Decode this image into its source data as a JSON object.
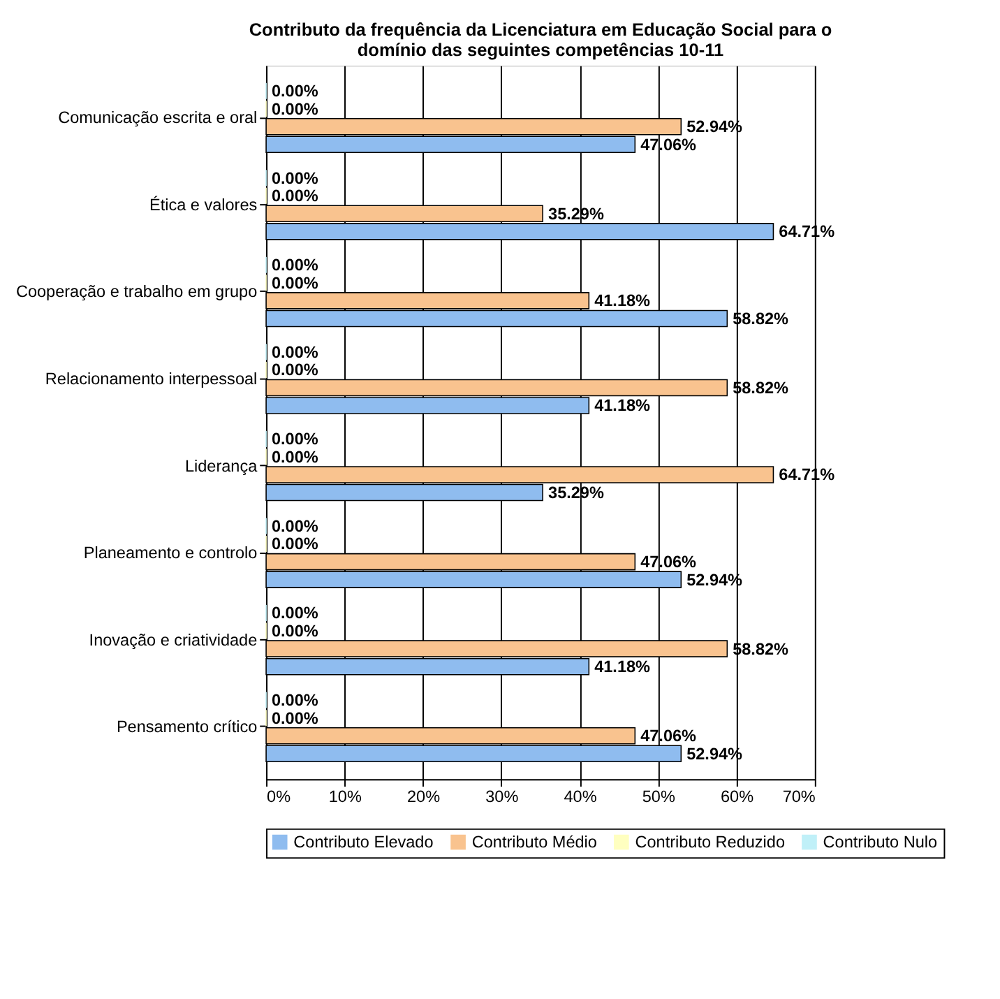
{
  "chart_data": {
    "type": "bar",
    "orientation": "horizontal",
    "title": "Contributo da frequência da Licenciatura em Educação Social para o domínio das seguintes competências 10-11",
    "categories": [
      "Comunicação escrita e oral",
      "Ética e valores",
      "Cooperação e trabalho em grupo",
      "Relacionamento interpessoal",
      "Liderança",
      "Planeamento e controlo",
      "Inovação e criatividade",
      "Pensamento crítico"
    ],
    "series": [
      {
        "name": "Contributo Elevado",
        "color": "#8fbcef",
        "values": [
          47.06,
          64.71,
          58.82,
          41.18,
          35.29,
          52.94,
          41.18,
          52.94
        ],
        "value_labels": [
          "47.06%",
          "64.71%",
          "58.82%",
          "41.18%",
          "35.29%",
          "52.94%",
          "41.18%",
          "52.94%"
        ]
      },
      {
        "name": "Contributo Médio",
        "color": "#f9c38f",
        "values": [
          52.94,
          35.29,
          41.18,
          58.82,
          64.71,
          47.06,
          58.82,
          47.06
        ],
        "value_labels": [
          "52.94%",
          "35.29%",
          "41.18%",
          "58.82%",
          "64.71%",
          "47.06%",
          "58.82%",
          "47.06%"
        ]
      },
      {
        "name": "Contributo Reduzido",
        "color": "#ffffc0",
        "values": [
          0,
          0,
          0,
          0,
          0,
          0,
          0,
          0
        ],
        "value_labels": [
          "0.00%",
          "0.00%",
          "0.00%",
          "0.00%",
          "0.00%",
          "0.00%",
          "0.00%",
          "0.00%"
        ]
      },
      {
        "name": "Contributo Nulo",
        "color": "#c0f0f8",
        "values": [
          0,
          0,
          0,
          0,
          0,
          0,
          0,
          0
        ],
        "value_labels": [
          "0.00%",
          "0.00%",
          "0.00%",
          "0.00%",
          "0.00%",
          "0.00%",
          "0.00%",
          "0.00%"
        ]
      }
    ],
    "xlim": [
      0,
      70
    ],
    "xticks": [
      {
        "value": 0,
        "label": "0%"
      },
      {
        "value": 10,
        "label": "10%"
      },
      {
        "value": 20,
        "label": "20%"
      },
      {
        "value": 30,
        "label": "30%"
      },
      {
        "value": 40,
        "label": "40%"
      },
      {
        "value": 50,
        "label": "50%"
      },
      {
        "value": 60,
        "label": "60%"
      },
      {
        "value": 70,
        "label": "70%"
      }
    ],
    "grid": "x",
    "legend": "bottom"
  }
}
